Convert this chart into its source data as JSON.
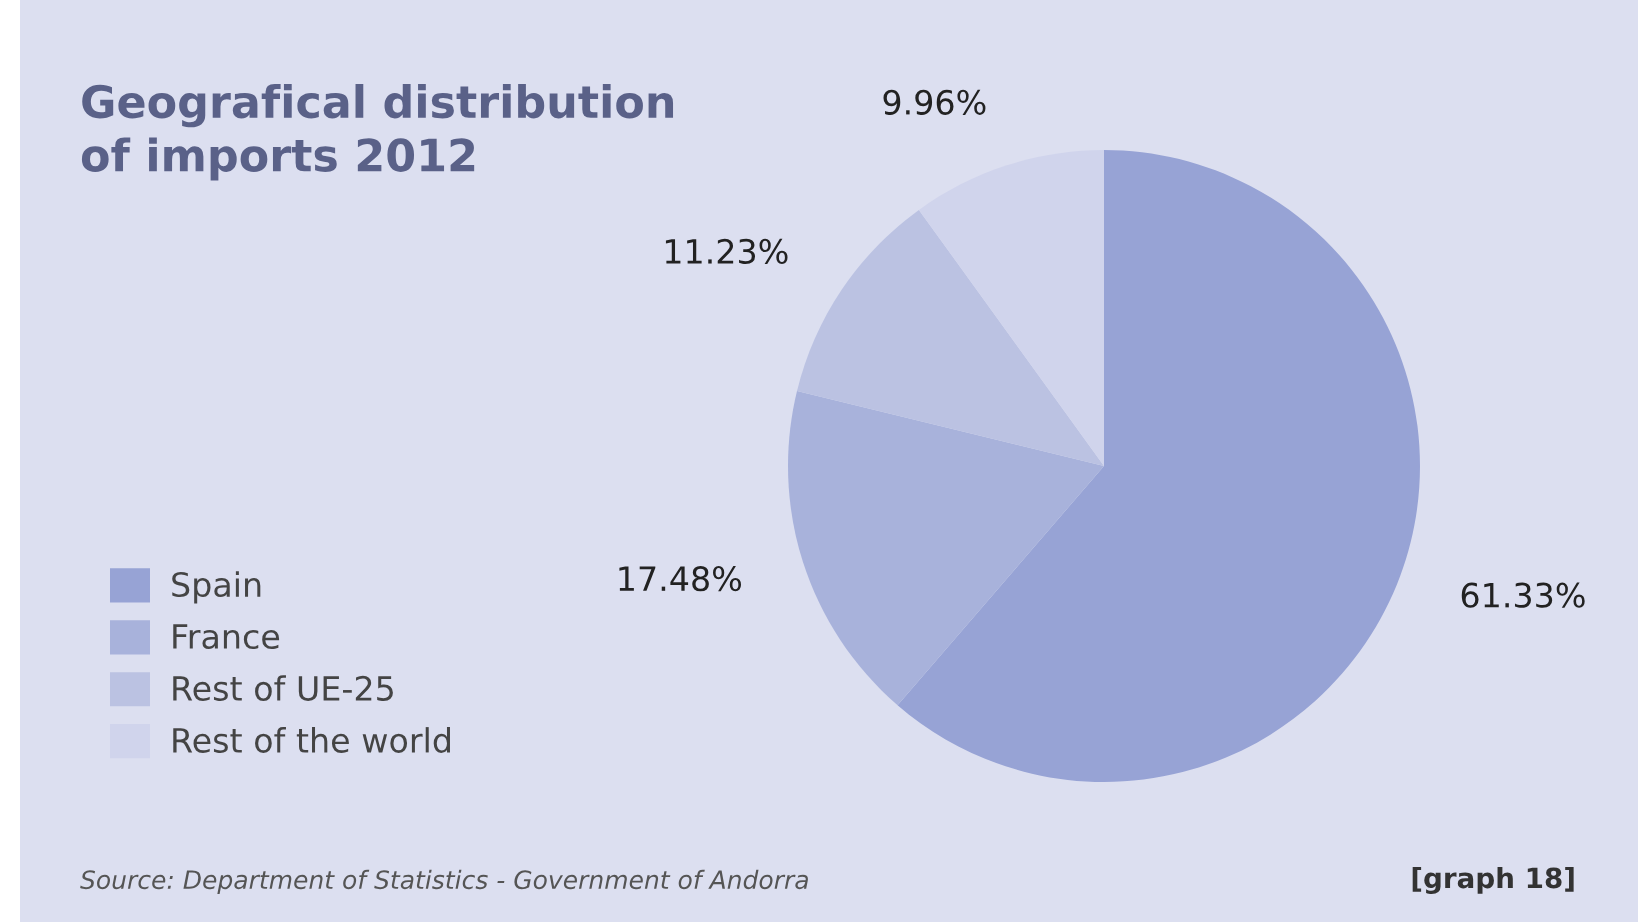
{
  "chart_data": {
    "type": "pie",
    "title": "Geografical distribution\nof imports 2012",
    "categories": [
      "Spain",
      "France",
      "Rest of UE-25",
      "Rest of the world"
    ],
    "values": [
      61.33,
      17.48,
      11.23,
      9.96
    ],
    "value_labels": [
      "61.33%",
      "17.48%",
      "11.23%",
      "9.96%"
    ],
    "colors": [
      "#97a3d5",
      "#a8b2db",
      "#bbc2e2",
      "#d0d4ec"
    ],
    "legend": "left",
    "annotations": [
      "Source: Department of Statistics - Government of Andorra",
      "[graph 18]"
    ]
  }
}
